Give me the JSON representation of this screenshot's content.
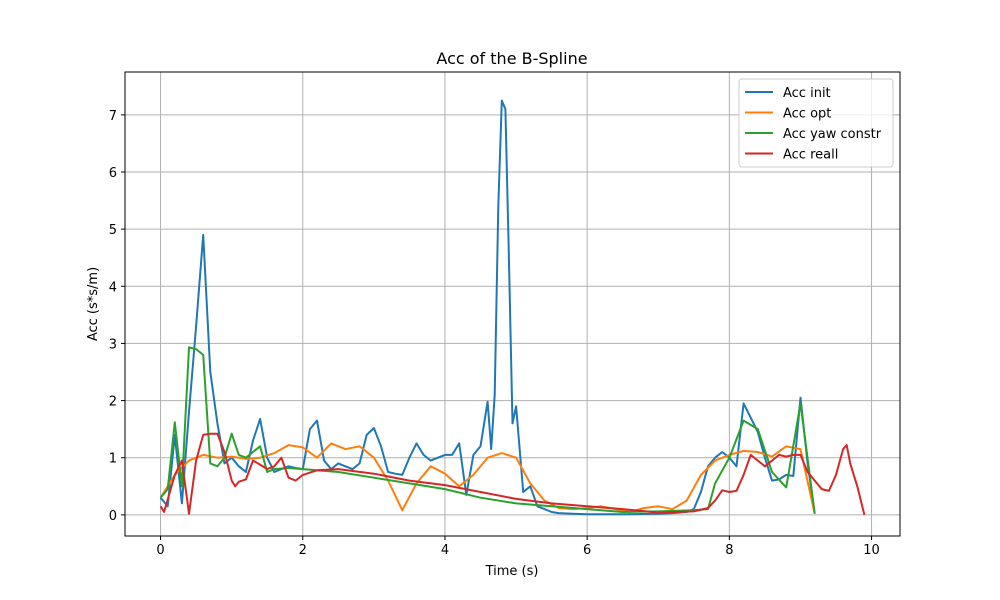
{
  "chart_data": {
    "type": "line",
    "title": "Acc of the B-Spline",
    "xlabel": "Time (s)",
    "ylabel": "Acc (s*s/m)",
    "xlim": [
      -0.5,
      10.4
    ],
    "ylim": [
      -0.37,
      7.75
    ],
    "xticks": [
      0,
      2,
      4,
      6,
      8,
      10
    ],
    "yticks": [
      0,
      1,
      2,
      3,
      4,
      5,
      6,
      7
    ],
    "grid": true,
    "legend_position": "top-right",
    "series": [
      {
        "name": "Acc init",
        "color": "#1f77b4",
        "x": [
          0.0,
          0.1,
          0.2,
          0.3,
          0.4,
          0.5,
          0.6,
          0.7,
          0.8,
          0.9,
          1.0,
          1.1,
          1.2,
          1.3,
          1.4,
          1.5,
          1.6,
          1.7,
          1.8,
          1.9,
          2.0,
          2.1,
          2.2,
          2.3,
          2.4,
          2.5,
          2.6,
          2.7,
          2.8,
          2.9,
          3.0,
          3.1,
          3.2,
          3.3,
          3.4,
          3.5,
          3.6,
          3.7,
          3.8,
          3.9,
          4.0,
          4.1,
          4.2,
          4.3,
          4.4,
          4.5,
          4.6,
          4.65,
          4.7,
          4.75,
          4.8,
          4.85,
          4.9,
          4.95,
          5.0,
          5.1,
          5.2,
          5.3,
          5.4,
          5.5,
          5.6,
          5.8,
          6.0,
          6.5,
          7.0,
          7.2,
          7.4,
          7.5,
          7.6,
          7.7,
          7.8,
          7.9,
          8.0,
          8.1,
          8.2,
          8.3,
          8.4,
          8.5,
          8.6,
          8.7,
          8.8,
          8.9,
          9.0,
          9.1,
          9.2
        ],
        "y": [
          0.3,
          0.15,
          1.4,
          0.2,
          1.8,
          3.3,
          4.9,
          2.5,
          1.6,
          0.9,
          1.0,
          0.85,
          0.75,
          1.3,
          1.68,
          1.0,
          0.75,
          0.8,
          0.85,
          0.82,
          0.8,
          1.5,
          1.65,
          0.95,
          0.8,
          0.9,
          0.85,
          0.8,
          0.9,
          1.4,
          1.52,
          1.2,
          0.75,
          0.72,
          0.7,
          1.0,
          1.25,
          1.05,
          0.95,
          1.0,
          1.05,
          1.05,
          1.25,
          0.35,
          1.05,
          1.2,
          1.98,
          1.15,
          2.1,
          5.4,
          7.25,
          7.1,
          4.5,
          1.6,
          1.9,
          0.4,
          0.5,
          0.15,
          0.1,
          0.05,
          0.03,
          0.02,
          0.01,
          0.01,
          0.02,
          0.03,
          0.05,
          0.1,
          0.4,
          0.85,
          1.0,
          1.1,
          1.0,
          0.85,
          1.95,
          1.7,
          1.45,
          1.0,
          0.6,
          0.62,
          0.7,
          0.68,
          2.05,
          0.9,
          0.02
        ]
      },
      {
        "name": "Acc opt",
        "color": "#ff7f0e",
        "x": [
          0.0,
          0.2,
          0.4,
          0.6,
          0.8,
          1.0,
          1.2,
          1.4,
          1.6,
          1.8,
          2.0,
          2.2,
          2.4,
          2.6,
          2.8,
          3.0,
          3.2,
          3.4,
          3.6,
          3.8,
          4.0,
          4.2,
          4.4,
          4.6,
          4.8,
          5.0,
          5.2,
          5.4,
          5.6,
          5.8,
          6.0,
          6.2,
          6.4,
          6.6,
          6.8,
          7.0,
          7.2,
          7.4,
          7.6,
          7.8,
          8.0,
          8.2,
          8.4,
          8.6,
          8.8,
          9.0,
          9.2
        ],
        "y": [
          0.3,
          0.7,
          0.95,
          1.05,
          1.0,
          1.02,
          0.98,
          1.0,
          1.08,
          1.22,
          1.18,
          1.0,
          1.25,
          1.15,
          1.2,
          1.0,
          0.6,
          0.08,
          0.55,
          0.85,
          0.72,
          0.5,
          0.7,
          1.0,
          1.08,
          1.0,
          0.55,
          0.25,
          0.12,
          0.1,
          0.12,
          0.15,
          0.1,
          0.05,
          0.12,
          0.15,
          0.1,
          0.25,
          0.7,
          0.95,
          1.05,
          1.12,
          1.1,
          1.02,
          1.2,
          1.15,
          0.02
        ]
      },
      {
        "name": "Acc yaw constr",
        "color": "#2ca02c",
        "x": [
          0.0,
          0.1,
          0.2,
          0.3,
          0.4,
          0.5,
          0.6,
          0.7,
          0.8,
          0.9,
          1.0,
          1.1,
          1.2,
          1.3,
          1.4,
          1.5,
          1.6,
          1.8,
          2.0,
          2.5,
          3.0,
          3.5,
          4.0,
          4.5,
          5.0,
          5.5,
          6.0,
          6.5,
          7.0,
          7.5,
          7.7,
          7.8,
          8.0,
          8.2,
          8.4,
          8.6,
          8.8,
          9.0,
          9.2
        ],
        "y": [
          0.3,
          0.45,
          1.62,
          0.5,
          2.93,
          2.9,
          2.8,
          0.9,
          0.85,
          1.0,
          1.42,
          1.05,
          1.0,
          1.1,
          1.2,
          0.75,
          0.8,
          0.82,
          0.8,
          0.75,
          0.65,
          0.55,
          0.45,
          0.3,
          0.2,
          0.15,
          0.1,
          0.05,
          0.06,
          0.08,
          0.1,
          0.55,
          1.0,
          1.65,
          1.5,
          0.75,
          0.48,
          1.95,
          0.02
        ]
      },
      {
        "name": "Acc reall",
        "color": "#d62728",
        "x": [
          0.0,
          0.05,
          0.2,
          0.3,
          0.4,
          0.5,
          0.6,
          0.7,
          0.8,
          0.9,
          1.0,
          1.05,
          1.1,
          1.2,
          1.3,
          1.4,
          1.5,
          1.6,
          1.7,
          1.8,
          1.9,
          2.0,
          2.2,
          2.5,
          3.0,
          3.5,
          4.0,
          4.5,
          5.0,
          5.5,
          6.0,
          6.5,
          7.0,
          7.5,
          7.7,
          7.8,
          7.9,
          8.0,
          8.1,
          8.2,
          8.3,
          8.4,
          8.5,
          8.6,
          8.7,
          8.8,
          8.9,
          9.0,
          9.1,
          9.2,
          9.3,
          9.4,
          9.5,
          9.6,
          9.65,
          9.7,
          9.8,
          9.9
        ],
        "y": [
          0.15,
          0.05,
          0.7,
          0.95,
          0.02,
          0.95,
          1.4,
          1.42,
          1.42,
          1.1,
          0.6,
          0.5,
          0.58,
          0.62,
          0.95,
          0.88,
          0.8,
          0.85,
          1.0,
          0.65,
          0.6,
          0.7,
          0.78,
          0.8,
          0.72,
          0.6,
          0.52,
          0.4,
          0.28,
          0.2,
          0.15,
          0.1,
          0.04,
          0.06,
          0.12,
          0.25,
          0.43,
          0.4,
          0.42,
          0.7,
          1.05,
          0.95,
          0.85,
          0.95,
          1.05,
          1.02,
          1.05,
          1.05,
          0.75,
          0.6,
          0.45,
          0.42,
          0.7,
          1.15,
          1.22,
          0.9,
          0.5,
          0.0
        ]
      }
    ]
  }
}
